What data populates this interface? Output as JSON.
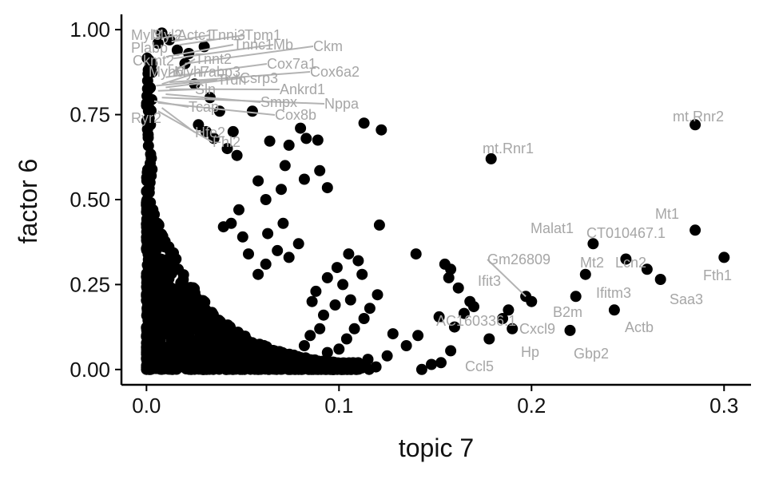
{
  "chart_data": {
    "type": "scatter",
    "title": "",
    "xlabel": "topic 7",
    "ylabel": "factor 6",
    "xlim": [
      -0.013,
      0.314
    ],
    "ylim": [
      -0.045,
      1.045
    ],
    "xticks": [
      0.0,
      0.1,
      0.2,
      0.3
    ],
    "xtick_labels": [
      "0.0",
      "0.1",
      "0.2",
      "0.3"
    ],
    "yticks": [
      0.0,
      0.25,
      0.5,
      0.75,
      1.0
    ],
    "ytick_labels": [
      "0.00",
      "0.25",
      "0.50",
      "0.75",
      "1.00"
    ],
    "grid": false,
    "legend": "none",
    "point_color": "#000000",
    "label_color": "#a6a6a6",
    "leader_color": "#b3b3b3",
    "points": [
      [
        0.179,
        0.62
      ],
      [
        0.285,
        0.72
      ],
      [
        0.285,
        0.41
      ],
      [
        0.3,
        0.33
      ],
      [
        0.267,
        0.265
      ],
      [
        0.26,
        0.295
      ],
      [
        0.249,
        0.325
      ],
      [
        0.232,
        0.37
      ],
      [
        0.228,
        0.28
      ],
      [
        0.243,
        0.175
      ],
      [
        0.223,
        0.215
      ],
      [
        0.22,
        0.115
      ],
      [
        0.2,
        0.2
      ],
      [
        0.197,
        0.215
      ],
      [
        0.188,
        0.175
      ],
      [
        0.185,
        0.15
      ],
      [
        0.19,
        0.12
      ],
      [
        0.178,
        0.09
      ],
      [
        0.113,
        0.725
      ],
      [
        0.122,
        0.705
      ],
      [
        0.055,
        0.76
      ],
      [
        0.08,
        0.71
      ],
      [
        0.083,
        0.68
      ],
      [
        0.089,
        0.675
      ],
      [
        0.064,
        0.672
      ],
      [
        0.074,
        0.66
      ],
      [
        0.072,
        0.6
      ],
      [
        0.082,
        0.56
      ],
      [
        0.094,
        0.535
      ],
      [
        0.09,
        0.585
      ],
      [
        0.07,
        0.53
      ],
      [
        0.062,
        0.5
      ],
      [
        0.058,
        0.555
      ],
      [
        0.048,
        0.47
      ],
      [
        0.035,
        0.68
      ],
      [
        0.031,
        0.7
      ],
      [
        0.042,
        0.65
      ],
      [
        0.045,
        0.7
      ],
      [
        0.038,
        0.76
      ],
      [
        0.027,
        0.72
      ],
      [
        0.047,
        0.63
      ],
      [
        0.121,
        0.425
      ],
      [
        0.14,
        0.34
      ],
      [
        0.155,
        0.31
      ],
      [
        0.158,
        0.295
      ],
      [
        0.157,
        0.27
      ],
      [
        0.162,
        0.24
      ],
      [
        0.168,
        0.2
      ],
      [
        0.17,
        0.185
      ],
      [
        0.165,
        0.165
      ],
      [
        0.16,
        0.125
      ],
      [
        0.152,
        0.155
      ],
      [
        0.141,
        0.1
      ],
      [
        0.143,
        0.0
      ],
      [
        0.148,
        0.015
      ],
      [
        0.153,
        0.02
      ],
      [
        0.158,
        0.055
      ],
      [
        0.135,
        0.07
      ],
      [
        0.125,
        0.04
      ],
      [
        0.128,
        0.105
      ],
      [
        0.12,
        0.22
      ],
      [
        0.116,
        0.18
      ],
      [
        0.113,
        0.15
      ],
      [
        0.108,
        0.12
      ],
      [
        0.104,
        0.09
      ],
      [
        0.1,
        0.06
      ],
      [
        0.115,
        0.03
      ],
      [
        0.11,
        0.01
      ],
      [
        0.105,
        0.34
      ],
      [
        0.11,
        0.32
      ],
      [
        0.099,
        0.3
      ],
      [
        0.094,
        0.27
      ],
      [
        0.102,
        0.25
      ],
      [
        0.112,
        0.28
      ],
      [
        0.106,
        0.205
      ],
      [
        0.098,
        0.19
      ],
      [
        0.092,
        0.16
      ],
      [
        0.09,
        0.12
      ],
      [
        0.085,
        0.1
      ],
      [
        0.082,
        0.07
      ],
      [
        0.086,
        0.2
      ],
      [
        0.088,
        0.23
      ],
      [
        0.094,
        0.05
      ],
      [
        0.096,
        0.02
      ],
      [
        0.079,
        0.37
      ],
      [
        0.074,
        0.33
      ],
      [
        0.068,
        0.35
      ],
      [
        0.062,
        0.31
      ],
      [
        0.058,
        0.28
      ],
      [
        0.053,
        0.34
      ],
      [
        0.05,
        0.39
      ],
      [
        0.044,
        0.43
      ],
      [
        0.04,
        0.42
      ],
      [
        0.063,
        0.4
      ],
      [
        0.071,
        0.43
      ],
      [
        0.033,
        0.8
      ],
      [
        0.025,
        0.84
      ],
      [
        0.02,
        0.9
      ],
      [
        0.016,
        0.94
      ],
      [
        0.012,
        0.97
      ],
      [
        0.008,
        0.99
      ],
      [
        0.006,
        0.96
      ],
      [
        0.03,
        0.95
      ],
      [
        0.022,
        0.93
      ]
    ],
    "annotations": [
      {
        "text": "mt.Rnr2",
        "x": 0.285,
        "y": 0.72
      },
      {
        "text": "mt.Rnr1",
        "x": 0.179,
        "y": 0.62
      },
      {
        "text": "Mt1",
        "x": 0.285,
        "y": 0.41
      },
      {
        "text": "CT010467.1",
        "x": 0.26,
        "y": 0.295
      },
      {
        "text": "Malat1",
        "x": 0.232,
        "y": 0.37
      },
      {
        "text": "Fth1",
        "x": 0.3,
        "y": 0.33
      },
      {
        "text": "Mt2",
        "x": 0.228,
        "y": 0.28
      },
      {
        "text": "Lcn2",
        "x": 0.249,
        "y": 0.325
      },
      {
        "text": "Saa3",
        "x": 0.267,
        "y": 0.265
      },
      {
        "text": "Ifitm3",
        "x": 0.243,
        "y": 0.175
      },
      {
        "text": "Gm26809",
        "x": 0.197,
        "y": 0.215
      },
      {
        "text": "Ifit3",
        "x": 0.188,
        "y": 0.175
      },
      {
        "text": "B2m",
        "x": 0.223,
        "y": 0.215
      },
      {
        "text": "Actb",
        "x": 0.243,
        "y": 0.175
      },
      {
        "text": "AC160336.1",
        "x": 0.185,
        "y": 0.15
      },
      {
        "text": "Cxcl9",
        "x": 0.2,
        "y": 0.2
      },
      {
        "text": "Gbp2",
        "x": 0.22,
        "y": 0.115
      },
      {
        "text": "Hp",
        "x": 0.19,
        "y": 0.12
      },
      {
        "text": "Ccl5",
        "x": 0.178,
        "y": 0.09
      },
      {
        "text": "Myl3",
        "x": 0.0,
        "y": 1.0
      },
      {
        "text": "Myl2",
        "x": 0.004,
        "y": 0.98
      },
      {
        "text": "Actc1",
        "x": 0.008,
        "y": 0.975
      },
      {
        "text": "Tnni3",
        "x": 0.013,
        "y": 0.965
      },
      {
        "text": "Tpm1",
        "x": 0.017,
        "y": 0.955
      },
      {
        "text": "Plabp",
        "x": 0.003,
        "y": 0.93
      },
      {
        "text": "Tnnc1",
        "x": 0.01,
        "y": 0.92
      },
      {
        "text": "Mb",
        "x": 0.014,
        "y": 0.915
      },
      {
        "text": "Ckm",
        "x": 0.02,
        "y": 0.9
      },
      {
        "text": "Ckmt2",
        "x": 0.005,
        "y": 0.88
      },
      {
        "text": "Tnnt2",
        "x": 0.012,
        "y": 0.87
      },
      {
        "text": "Cox7a1",
        "x": 0.01,
        "y": 0.86
      },
      {
        "text": "Myh6",
        "x": 0.003,
        "y": 0.855
      },
      {
        "text": "Myh7",
        "x": 0.006,
        "y": 0.85
      },
      {
        "text": "Cox6a2",
        "x": 0.012,
        "y": 0.845
      },
      {
        "text": "Fabp3",
        "x": 0.008,
        "y": 0.84
      },
      {
        "text": "Trdn",
        "x": 0.005,
        "y": 0.835
      },
      {
        "text": "Csrp3",
        "x": 0.01,
        "y": 0.83
      },
      {
        "text": "Ankrd1",
        "x": 0.012,
        "y": 0.825
      },
      {
        "text": "Sln",
        "x": 0.006,
        "y": 0.82
      },
      {
        "text": "Nppa",
        "x": 0.008,
        "y": 0.8
      },
      {
        "text": "Smpx",
        "x": 0.01,
        "y": 0.81
      },
      {
        "text": "Tcap",
        "x": 0.004,
        "y": 0.79
      },
      {
        "text": "Cox8b",
        "x": 0.006,
        "y": 0.785
      },
      {
        "text": "Ryr2",
        "x": 0.002,
        "y": 0.78
      },
      {
        "text": "Hfe2",
        "x": 0.008,
        "y": 0.77
      },
      {
        "text": "Fhl2",
        "x": 0.006,
        "y": 0.76
      }
    ]
  }
}
